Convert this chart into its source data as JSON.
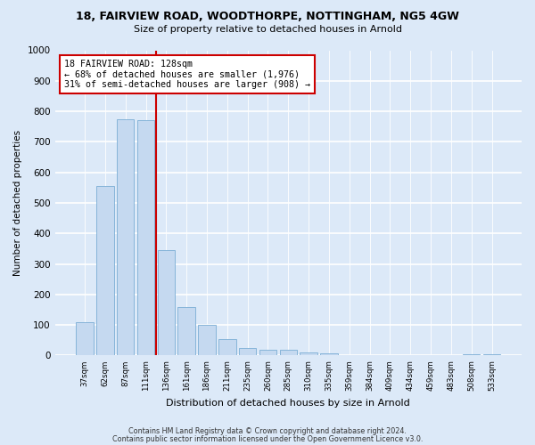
{
  "title1": "18, FAIRVIEW ROAD, WOODTHORPE, NOTTINGHAM, NG5 4GW",
  "title2": "Size of property relative to detached houses in Arnold",
  "xlabel": "Distribution of detached houses by size in Arnold",
  "ylabel": "Number of detached properties",
  "categories": [
    "37sqm",
    "62sqm",
    "87sqm",
    "111sqm",
    "136sqm",
    "161sqm",
    "186sqm",
    "211sqm",
    "235sqm",
    "260sqm",
    "285sqm",
    "310sqm",
    "335sqm",
    "359sqm",
    "384sqm",
    "409sqm",
    "434sqm",
    "459sqm",
    "483sqm",
    "508sqm",
    "533sqm"
  ],
  "values": [
    110,
    555,
    775,
    770,
    345,
    160,
    100,
    55,
    25,
    20,
    18,
    10,
    8,
    0,
    0,
    0,
    0,
    0,
    0,
    5,
    5
  ],
  "bar_color": "#c5d9f0",
  "bar_edge_color": "#7aadd4",
  "annotation_line": "18 FAIRVIEW ROAD: 128sqm",
  "annotation_line2": "← 68% of detached houses are smaller (1,976)",
  "annotation_line3": "31% of semi-detached houses are larger (908) →",
  "annotation_box_color": "#ffffff",
  "annotation_box_edge_color": "#cc0000",
  "red_line_x": 3.5,
  "ylim": [
    0,
    1000
  ],
  "yticks": [
    0,
    100,
    200,
    300,
    400,
    500,
    600,
    700,
    800,
    900,
    1000
  ],
  "background_color": "#dce9f8",
  "plot_bg_color": "#dce9f8",
  "grid_color": "#ffffff",
  "footer1": "Contains HM Land Registry data © Crown copyright and database right 2024.",
  "footer2": "Contains public sector information licensed under the Open Government Licence v3.0."
}
